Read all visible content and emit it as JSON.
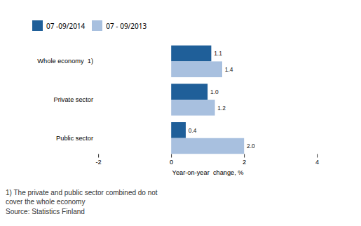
{
  "chart_data": {
    "type": "bar",
    "orientation": "horizontal",
    "categories": [
      "Public sector",
      "Private sector",
      "Whole economy  1)"
    ],
    "series": [
      {
        "name": "07 -09/2014",
        "color": "#1F5F99",
        "values": [
          0.4,
          1.0,
          1.1
        ],
        "value_labels": [
          "0.4",
          "1.0",
          "1.1"
        ]
      },
      {
        "name": "07 - 09/2013",
        "color": "#A8C0DF",
        "values": [
          2.0,
          1.2,
          1.4
        ],
        "value_labels": [
          "2.0",
          "1.2",
          "1.4"
        ]
      }
    ],
    "xlabel": "Year-on-year  change, %",
    "xlim": [
      -2,
      4
    ],
    "xticks": [
      -2,
      0,
      2,
      4
    ],
    "data_labels": true,
    "grid": false,
    "legend": "upper left",
    "annotations": [
      "1)  The private and public sector combined do not\ncover the whole economy",
      "Source: Statistics Finland"
    ]
  }
}
